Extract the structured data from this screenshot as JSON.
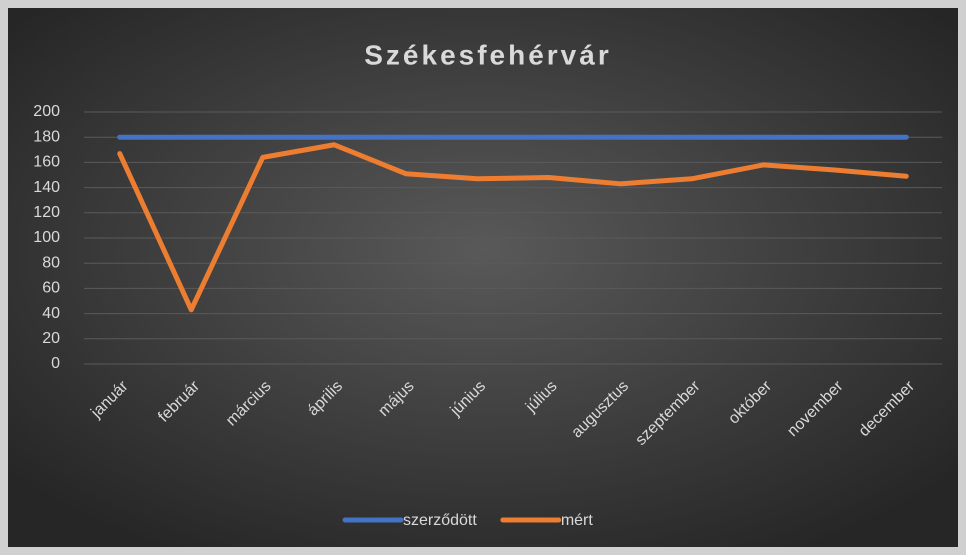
{
  "chart_data": {
    "type": "line",
    "title": "Székesfehérvár",
    "categories": [
      "január",
      "február",
      "március",
      "április",
      "május",
      "június",
      "július",
      "augusztus",
      "szeptember",
      "október",
      "november",
      "december"
    ],
    "series": [
      {
        "name": "szerződött",
        "color": "#4472c4",
        "values": [
          180,
          180,
          180,
          180,
          180,
          180,
          180,
          180,
          180,
          180,
          180,
          180
        ]
      },
      {
        "name": "mért",
        "color": "#ed7d31",
        "values": [
          167,
          43,
          164,
          174,
          151,
          147,
          148,
          143,
          147,
          158,
          154,
          149
        ]
      }
    ],
    "ylim": [
      0,
      200
    ],
    "yticks": [
      0,
      20,
      40,
      60,
      80,
      100,
      120,
      140,
      160,
      180,
      200
    ],
    "grid": true,
    "legend": "bottom"
  }
}
